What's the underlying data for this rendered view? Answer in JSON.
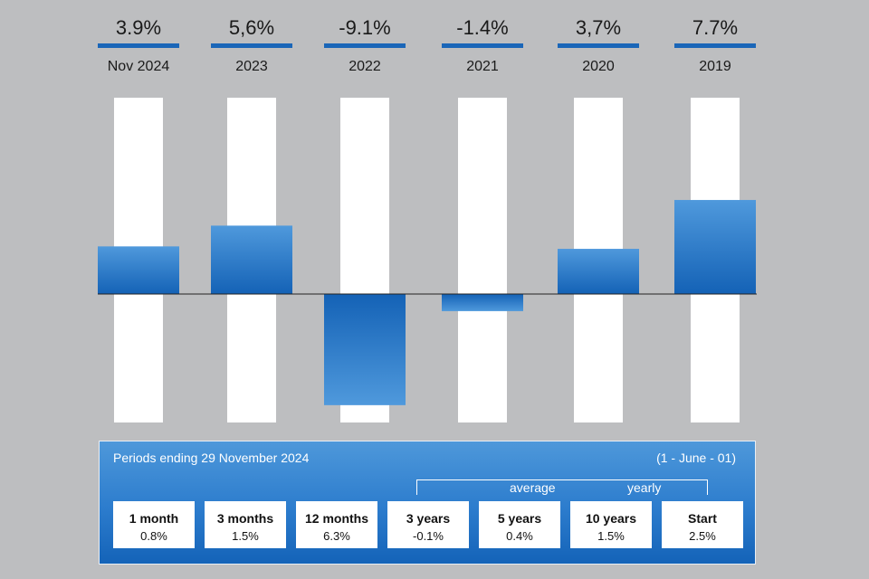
{
  "chart_data": {
    "type": "bar",
    "categories": [
      "Nov 2024",
      "2023",
      "2022",
      "2021",
      "2020",
      "2019"
    ],
    "value_labels": [
      "3.9%",
      "5,6%",
      "-9.1%",
      "-1.4%",
      "3,7%",
      "7.7%"
    ],
    "values": [
      3.9,
      5.6,
      -9.1,
      -1.4,
      3.7,
      7.7
    ],
    "ylim": [
      -10,
      12.5
    ],
    "bar_color": "#2b7bcc",
    "header_line_color": "#1a66b8",
    "track_color": "#ffffff",
    "grid": false
  },
  "periods": {
    "title": "Periods ending 29 November 2024",
    "note": "(1 - June - 01)",
    "average_label": "average",
    "yearly_label": "yearly",
    "items": [
      {
        "label": "1 month",
        "value": "0.8%"
      },
      {
        "label": "3 months",
        "value": "1.5%"
      },
      {
        "label": "12 months",
        "value": "6.3%"
      },
      {
        "label": "3 years",
        "value": "-0.1%"
      },
      {
        "label": "5 years",
        "value": "0.4%"
      },
      {
        "label": "10 years",
        "value": "1.5%"
      },
      {
        "label": "Start",
        "value": "2.5%"
      }
    ]
  }
}
